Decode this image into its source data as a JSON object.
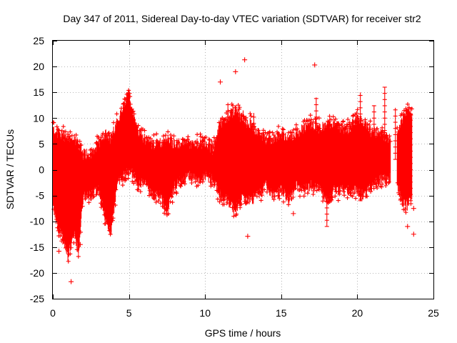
{
  "chart_data": {
    "type": "scatter",
    "title": "Day 347 of 2011, Sidereal Day-to-day VTEC variation (SDTVAR) for receiver str2",
    "xlabel": "GPS time / hours",
    "ylabel": "SDTVAR / TECUs",
    "xlim": [
      0,
      25
    ],
    "ylim": [
      -25,
      25
    ],
    "xticks": [
      0,
      5,
      10,
      15,
      20,
      25
    ],
    "yticks": [
      -25,
      -20,
      -15,
      -10,
      -5,
      0,
      5,
      10,
      15,
      20,
      25
    ],
    "grid": true,
    "marker": "+",
    "series_color": "#ff0000",
    "envelope": [
      {
        "x": 0.0,
        "lo": -7,
        "hi": 8
      },
      {
        "x": 0.3,
        "lo": -11,
        "hi": 7
      },
      {
        "x": 0.6,
        "lo": -13,
        "hi": 7
      },
      {
        "x": 1.0,
        "lo": -17,
        "hi": 6
      },
      {
        "x": 1.4,
        "lo": -12,
        "hi": 6
      },
      {
        "x": 1.7,
        "lo": -16,
        "hi": 5
      },
      {
        "x": 2.0,
        "lo": -5,
        "hi": 3
      },
      {
        "x": 2.5,
        "lo": -5,
        "hi": 3
      },
      {
        "x": 3.0,
        "lo": -4,
        "hi": 5
      },
      {
        "x": 3.5,
        "lo": -10,
        "hi": 7
      },
      {
        "x": 3.8,
        "lo": -13,
        "hi": 6
      },
      {
        "x": 4.2,
        "lo": -3,
        "hi": 9
      },
      {
        "x": 4.7,
        "lo": -1,
        "hi": 13
      },
      {
        "x": 5.0,
        "lo": 0,
        "hi": 15
      },
      {
        "x": 5.3,
        "lo": -1,
        "hi": 10
      },
      {
        "x": 5.7,
        "lo": -3,
        "hi": 7
      },
      {
        "x": 6.0,
        "lo": -2,
        "hi": 6
      },
      {
        "x": 6.5,
        "lo": -5,
        "hi": 5
      },
      {
        "x": 7.0,
        "lo": -5,
        "hi": 5
      },
      {
        "x": 7.5,
        "lo": -8,
        "hi": 6
      },
      {
        "x": 8.0,
        "lo": -3,
        "hi": 5
      },
      {
        "x": 8.5,
        "lo": -2,
        "hi": 5
      },
      {
        "x": 9.0,
        "lo": -1,
        "hi": 5
      },
      {
        "x": 9.5,
        "lo": -2,
        "hi": 5
      },
      {
        "x": 10.0,
        "lo": -1,
        "hi": 5
      },
      {
        "x": 10.5,
        "lo": -2,
        "hi": 4
      },
      {
        "x": 11.0,
        "lo": -5,
        "hi": 9
      },
      {
        "x": 11.5,
        "lo": -6,
        "hi": 10
      },
      {
        "x": 12.0,
        "lo": -8,
        "hi": 12
      },
      {
        "x": 12.5,
        "lo": -5,
        "hi": 9
      },
      {
        "x": 13.0,
        "lo": -6,
        "hi": 9
      },
      {
        "x": 13.5,
        "lo": -5,
        "hi": 7
      },
      {
        "x": 14.0,
        "lo": -3,
        "hi": 6
      },
      {
        "x": 14.5,
        "lo": -5,
        "hi": 6
      },
      {
        "x": 15.0,
        "lo": -4,
        "hi": 7
      },
      {
        "x": 15.5,
        "lo": -6,
        "hi": 6
      },
      {
        "x": 16.0,
        "lo": -3,
        "hi": 7
      },
      {
        "x": 16.5,
        "lo": -4,
        "hi": 8
      },
      {
        "x": 17.0,
        "lo": -3,
        "hi": 9
      },
      {
        "x": 17.5,
        "lo": -4,
        "hi": 8
      },
      {
        "x": 18.0,
        "lo": -6,
        "hi": 9
      },
      {
        "x": 18.5,
        "lo": -4,
        "hi": 9
      },
      {
        "x": 19.0,
        "lo": -4,
        "hi": 8
      },
      {
        "x": 19.5,
        "lo": -4,
        "hi": 8
      },
      {
        "x": 20.0,
        "lo": -4,
        "hi": 10
      },
      {
        "x": 20.5,
        "lo": -5,
        "hi": 9
      },
      {
        "x": 21.0,
        "lo": -3,
        "hi": 7
      },
      {
        "x": 21.5,
        "lo": -2,
        "hi": 7
      },
      {
        "x": 22.0,
        "lo": -2,
        "hi": 6
      },
      {
        "x": 22.5,
        "lo": -1,
        "hi": 5
      },
      {
        "x": 22.9,
        "lo": -6,
        "hi": 9
      },
      {
        "x": 23.3,
        "lo": -7,
        "hi": 12
      },
      {
        "x": 23.6,
        "lo": -5,
        "hi": 10
      }
    ],
    "gaps": [
      [
        22.2,
        22.6
      ]
    ],
    "spikes": [
      {
        "x": 1.2,
        "lo": -10,
        "hi": 6
      },
      {
        "x": 4.95,
        "lo": 0,
        "hi": 15.5
      },
      {
        "x": 11.5,
        "lo": -3,
        "hi": 13
      },
      {
        "x": 12.5,
        "lo": -4,
        "hi": 11.5
      },
      {
        "x": 13.2,
        "lo": -3,
        "hi": 11
      },
      {
        "x": 17.3,
        "lo": -3,
        "hi": 14
      },
      {
        "x": 18.0,
        "lo": -11,
        "hi": 6
      },
      {
        "x": 20.2,
        "lo": -6,
        "hi": 15
      },
      {
        "x": 21.1,
        "lo": -2,
        "hi": 12.5
      },
      {
        "x": 21.8,
        "lo": -2,
        "hi": 16
      },
      {
        "x": 22.5,
        "lo": 2,
        "hi": 12
      },
      {
        "x": 23.5,
        "lo": -6,
        "hi": 12
      }
    ],
    "outliers": [
      {
        "x": 0.4,
        "y": -15.8
      },
      {
        "x": 1.2,
        "y": -21.7
      },
      {
        "x": 1.8,
        "y": -14.5
      },
      {
        "x": 7.5,
        "y": -8.5
      },
      {
        "x": 11.0,
        "y": 17.0
      },
      {
        "x": 12.0,
        "y": 19.0
      },
      {
        "x": 12.6,
        "y": 21.3
      },
      {
        "x": 12.8,
        "y": -12.9
      },
      {
        "x": 15.8,
        "y": -8.5
      },
      {
        "x": 17.2,
        "y": 20.3
      },
      {
        "x": 23.3,
        "y": -11.0
      },
      {
        "x": 23.7,
        "y": -12.5
      },
      {
        "x": 23.7,
        "y": -7.5
      }
    ]
  }
}
